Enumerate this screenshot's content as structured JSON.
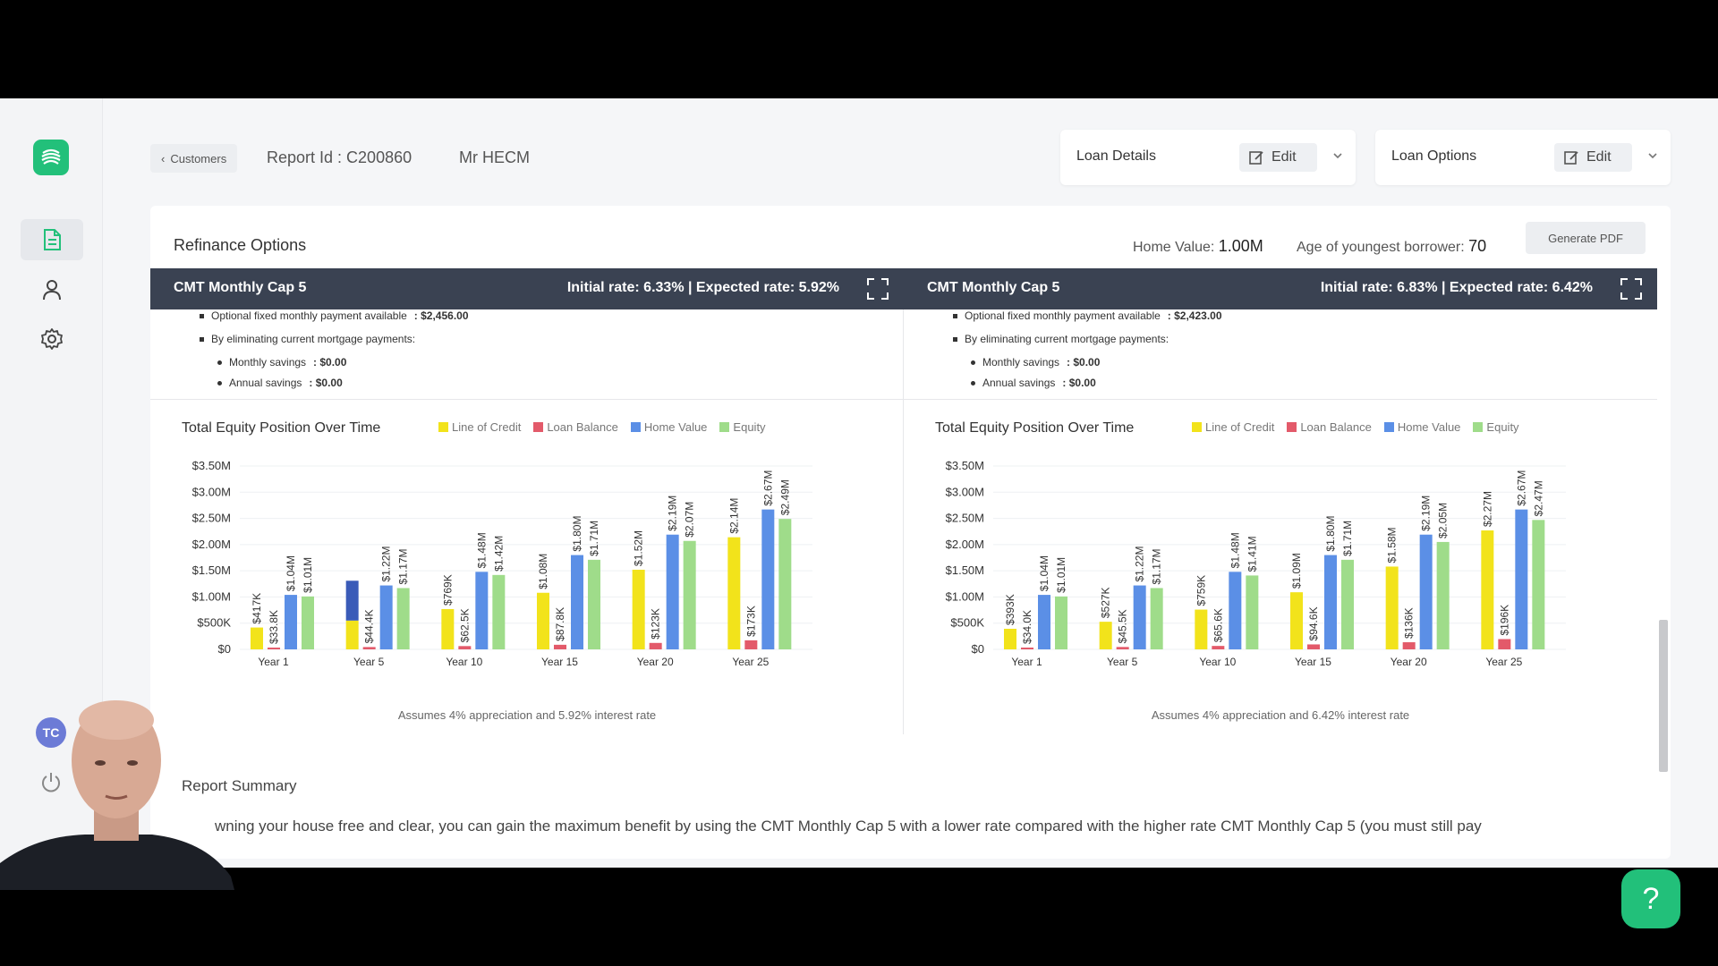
{
  "nav": {
    "customers_crumb": "Customers",
    "report_id": "Report Id : C200860",
    "client_name": "Mr HECM",
    "avatar_initials": "TC"
  },
  "loan_details": {
    "title": "Loan Details",
    "edit_label": "Edit"
  },
  "loan_options": {
    "title": "Loan Options",
    "edit_label": "Edit"
  },
  "main": {
    "title": "Refinance Options",
    "home_value_label": "Home Value:",
    "home_value": "1.00M",
    "age_label": "Age of youngest borrower:",
    "age_value": "70",
    "generate_pdf": "Generate PDF"
  },
  "panels": [
    {
      "name": "CMT Monthly Cap 5",
      "rates": "Initial rate: 6.33% | Expected rate: 5.92%",
      "bullets": {
        "fixed_label": "Optional fixed monthly payment available",
        "fixed_value": ": $2,456.00",
        "eliminating": "By eliminating current mortgage payments:",
        "monthly_label": "Monthly savings",
        "monthly_value": ": $0.00",
        "annual_label": "Annual savings",
        "annual_value": ": $0.00"
      },
      "chart_title": "Total Equity Position Over Time",
      "assumes": "Assumes 4% appreciation and 5.92% interest rate"
    },
    {
      "name": "CMT Monthly Cap 5",
      "rates": "Initial rate: 6.83% | Expected rate: 6.42%",
      "bullets": {
        "fixed_label": "Optional fixed monthly payment available",
        "fixed_value": ": $2,423.00",
        "eliminating": "By eliminating current mortgage payments:",
        "monthly_label": "Monthly savings",
        "monthly_value": ": $0.00",
        "annual_label": "Annual savings",
        "annual_value": ": $0.00"
      },
      "chart_title": "Total Equity Position Over Time",
      "assumes": "Assumes 4% appreciation and 6.42% interest rate"
    }
  ],
  "legend": [
    "Line of Credit",
    "Loan Balance",
    "Home Value",
    "Equity"
  ],
  "colors": {
    "line_of_credit": "#f2e31b",
    "loan_balance": "#e35a6a",
    "home_value": "#5b8fe6",
    "equity": "#9fdc8a",
    "highlight": "#3a5bb8",
    "accent": "#22c07a",
    "header": "#3a4252"
  },
  "chart_data": [
    {
      "type": "bar",
      "title": "Total Equity Position Over Time",
      "categories": [
        "Year 1",
        "Year 5",
        "Year 10",
        "Year 15",
        "Year 20",
        "Year 25"
      ],
      "ylim": [
        0,
        3.5
      ],
      "yticks": [
        "$0",
        "$500K",
        "$1.00M",
        "$1.50M",
        "$2.00M",
        "$2.50M",
        "$3.00M",
        "$3.50M"
      ],
      "series": [
        {
          "name": "Line of Credit",
          "values": [
            0.417,
            0.55,
            0.769,
            1.08,
            1.52,
            2.14
          ],
          "labels": [
            "$417K",
            "$",
            "$769K",
            "$1.08M",
            "$1.52M",
            "$2.14M"
          ]
        },
        {
          "name": "Loan Balance",
          "values": [
            0.0338,
            0.0444,
            0.0625,
            0.0878,
            0.123,
            0.173
          ],
          "labels": [
            "$33.8K",
            "$44.4K",
            "$62.5K",
            "$87.8K",
            "$123K",
            "$173K"
          ]
        },
        {
          "name": "Home Value",
          "values": [
            1.04,
            1.22,
            1.48,
            1.8,
            2.19,
            2.67
          ],
          "labels": [
            "$1.04M",
            "$1.22M",
            "$1.48M",
            "$1.80M",
            "$2.19M",
            "$2.67M"
          ]
        },
        {
          "name": "Equity",
          "values": [
            1.01,
            1.17,
            1.42,
            1.71,
            2.07,
            2.49
          ],
          "labels": [
            "$1.01M",
            "$1.17M",
            "$1.42M",
            "$1.71M",
            "$2.07M",
            "$2.49M"
          ]
        }
      ],
      "highlight_bar": {
        "category": "Year 5",
        "from": 0.55,
        "to": 1.31
      }
    },
    {
      "type": "bar",
      "title": "Total Equity Position Over Time",
      "categories": [
        "Year 1",
        "Year 5",
        "Year 10",
        "Year 15",
        "Year 20",
        "Year 25"
      ],
      "ylim": [
        0,
        3.5
      ],
      "yticks": [
        "$0",
        "$500K",
        "$1.00M",
        "$1.50M",
        "$2.00M",
        "$2.50M",
        "$3.00M",
        "$3.50M"
      ],
      "series": [
        {
          "name": "Line of Credit",
          "values": [
            0.393,
            0.527,
            0.759,
            1.09,
            1.58,
            2.27
          ],
          "labels": [
            "$393K",
            "$527K",
            "$759K",
            "$1.09M",
            "$1.58M",
            "$2.27M"
          ]
        },
        {
          "name": "Loan Balance",
          "values": [
            0.034,
            0.0455,
            0.0656,
            0.0946,
            0.136,
            0.196
          ],
          "labels": [
            "$34.0K",
            "$45.5K",
            "$65.6K",
            "$94.6K",
            "$136K",
            "$196K"
          ]
        },
        {
          "name": "Home Value",
          "values": [
            1.04,
            1.22,
            1.48,
            1.8,
            2.19,
            2.67
          ],
          "labels": [
            "$1.04M",
            "$1.22M",
            "$1.48M",
            "$1.80M",
            "$2.19M",
            "$2.67M"
          ]
        },
        {
          "name": "Equity",
          "values": [
            1.01,
            1.17,
            1.41,
            1.71,
            2.05,
            2.47
          ],
          "labels": [
            "$1.01M",
            "$1.17M",
            "$1.41M",
            "$1.71M",
            "$2.05M",
            "$2.47M"
          ]
        }
      ]
    }
  ],
  "summary": {
    "title": "Report Summary",
    "text": "wning your house free and clear, you can gain the maximum benefit by using the CMT Monthly Cap 5 with a lower rate compared with the higher rate CMT Monthly Cap 5 (you must still pay"
  },
  "help_label": "?"
}
